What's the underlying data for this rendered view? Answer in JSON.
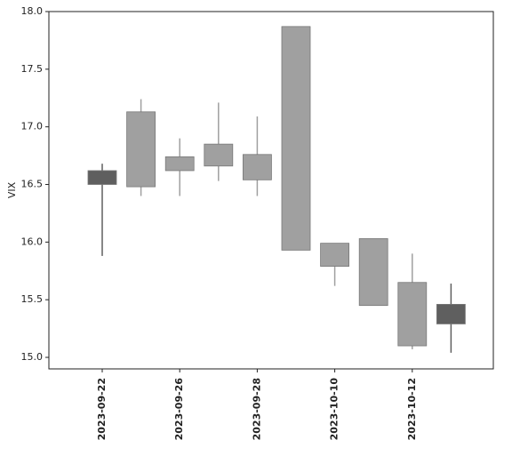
{
  "chart_data": {
    "type": "candlestick",
    "ylabel": "VIX",
    "categories": [
      "2023-09-22",
      null,
      "2023-09-26",
      null,
      "2023-09-28",
      null,
      "2023-10-10",
      null,
      "2023-10-12",
      null
    ],
    "open": [
      16.62,
      16.48,
      16.62,
      16.66,
      16.54,
      15.93,
      15.79,
      15.45,
      15.1,
      15.46
    ],
    "high": [
      16.68,
      17.24,
      16.9,
      17.21,
      17.09,
      17.87,
      15.99,
      16.03,
      15.9,
      15.64
    ],
    "low": [
      15.88,
      16.4,
      16.4,
      16.53,
      16.4,
      15.93,
      15.62,
      15.45,
      15.07,
      15.04
    ],
    "close": [
      16.5,
      17.13,
      16.74,
      16.85,
      16.76,
      17.87,
      15.99,
      16.03,
      15.65,
      15.29
    ],
    "colors": [
      "#5f5f5f",
      "#a0a0a0",
      "#a0a0a0",
      "#a0a0a0",
      "#a0a0a0",
      "#a0a0a0",
      "#a0a0a0",
      "#a0a0a0",
      "#a0a0a0",
      "#5f5f5f"
    ],
    "ylim": [
      14.9,
      18.0
    ],
    "yticks": [
      {
        "value": 15.0,
        "label": "15.0"
      },
      {
        "value": 15.5,
        "label": "15.5"
      },
      {
        "value": 16.0,
        "label": "16.0"
      },
      {
        "value": 16.5,
        "label": "16.5"
      },
      {
        "value": 17.0,
        "label": "17.0"
      },
      {
        "value": 17.5,
        "label": "17.5"
      },
      {
        "value": 18.0,
        "label": "18.0"
      }
    ]
  }
}
